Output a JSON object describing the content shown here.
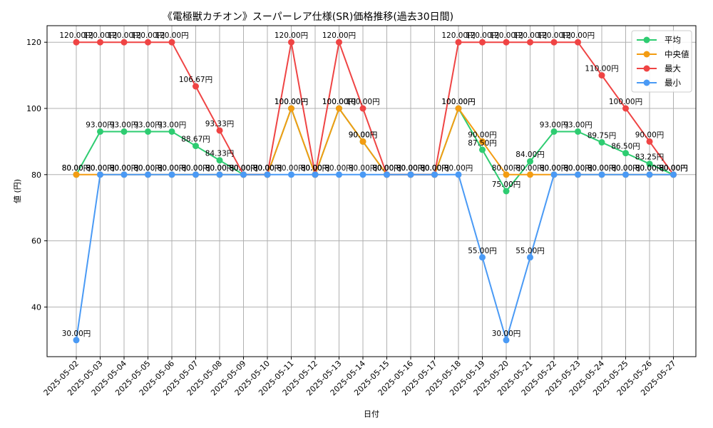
{
  "chart_data": {
    "type": "line",
    "title": "《電極獣カチオン》スーパーレア仕様(SR)価格推移(過去30日間)",
    "xlabel": "日付",
    "ylabel": "値 (円)",
    "ylim": [
      25,
      125
    ],
    "y_ticks": [
      40,
      60,
      80,
      100,
      120
    ],
    "grid": true,
    "legend_position": "top-right",
    "label_suffix": "円",
    "categories": [
      "2025-05-02",
      "2025-05-03",
      "2025-05-04",
      "2025-05-05",
      "2025-05-06",
      "2025-05-07",
      "2025-05-08",
      "2025-05-09",
      "2025-05-10",
      "2025-05-11",
      "2025-05-12",
      "2025-05-13",
      "2025-05-14",
      "2025-05-15",
      "2025-05-16",
      "2025-05-17",
      "2025-05-18",
      "2025-05-19",
      "2025-05-20",
      "2025-05-21",
      "2025-05-22",
      "2025-05-23",
      "2025-05-24",
      "2025-05-25",
      "2025-05-26",
      "2025-05-27"
    ],
    "series": [
      {
        "name": "平均",
        "color": "#2ecc71",
        "values": [
          80,
          93,
          93,
          93,
          93,
          88.67,
          84.33,
          80,
          80,
          100,
          80,
          100,
          90,
          80,
          80,
          80,
          100,
          87.5,
          75,
          84,
          93,
          93,
          89.75,
          86.5,
          83.25,
          80
        ]
      },
      {
        "name": "中央値",
        "color": "#f39c12",
        "values": [
          80,
          80,
          80,
          80,
          80,
          80,
          80,
          80,
          80,
          100,
          80,
          100,
          90,
          80,
          80,
          80,
          100,
          90,
          80,
          80,
          80,
          80,
          80,
          80,
          80,
          80
        ]
      },
      {
        "name": "最大",
        "color": "#ef4444",
        "values": [
          120,
          120,
          120,
          120,
          120,
          106.67,
          93.33,
          80,
          80,
          120,
          80,
          120,
          100,
          80,
          80,
          80,
          120,
          120,
          120,
          120,
          120,
          120,
          110,
          100,
          90,
          80
        ]
      },
      {
        "name": "最小",
        "color": "#4a9af5",
        "values": [
          30,
          80,
          80,
          80,
          80,
          80,
          80,
          80,
          80,
          80,
          80,
          80,
          80,
          80,
          80,
          80,
          80,
          55,
          30,
          55,
          80,
          80,
          80,
          80,
          80,
          80
        ]
      }
    ]
  }
}
